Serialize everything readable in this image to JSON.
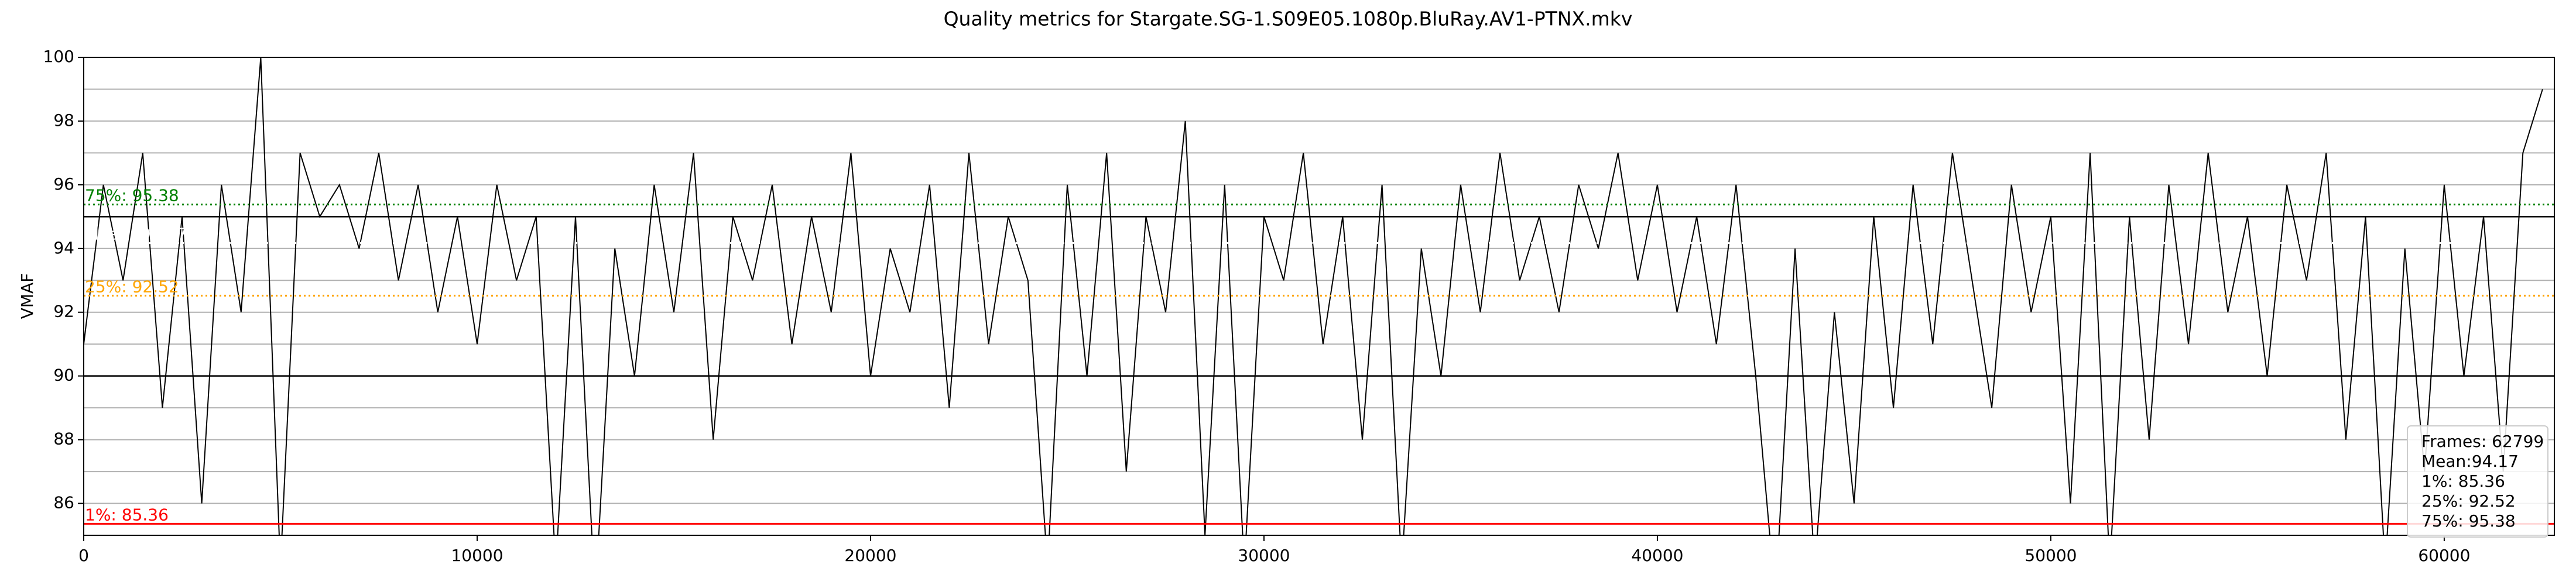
{
  "chart_data": {
    "type": "line",
    "title": "Quality metrics for Stargate.SG-1.S09E05.1080p.BluRay.AV1-PTNX.mkv",
    "ylabel": "VMAF",
    "color": "#000000",
    "x": [
      0,
      500,
      1000,
      1500,
      2000,
      2500,
      3000,
      3500,
      4000,
      4500,
      5000,
      5500,
      6000,
      6500,
      7000,
      7500,
      8000,
      8500,
      9000,
      9500,
      10000,
      10500,
      11000,
      11500,
      12000,
      12500,
      13000,
      13500,
      14000,
      14500,
      15000,
      15500,
      16000,
      16500,
      17000,
      17500,
      18000,
      18500,
      19000,
      19500,
      20000,
      20500,
      21000,
      21500,
      22000,
      22500,
      23000,
      23500,
      24000,
      24500,
      25000,
      25500,
      26000,
      26500,
      27000,
      27500,
      28000,
      28500,
      29000,
      29500,
      30000,
      30500,
      31000,
      31500,
      32000,
      32500,
      33000,
      33500,
      34000,
      34500,
      35000,
      35500,
      36000,
      36500,
      37000,
      37500,
      38000,
      38500,
      39000,
      39500,
      40000,
      40500,
      41000,
      41500,
      42000,
      42500,
      43000,
      43500,
      44000,
      44500,
      45000,
      45500,
      46000,
      46500,
      47000,
      47500,
      48000,
      48500,
      49000,
      49500,
      50000,
      50500,
      51000,
      51500,
      52000,
      52500,
      53000,
      53500,
      54000,
      54500,
      55000,
      55500,
      56000,
      56500,
      57000,
      57500,
      58000,
      58500,
      59000,
      59500,
      60000,
      60500,
      61000,
      61500,
      62000,
      62500
    ],
    "values": [
      91,
      96,
      93,
      97,
      89,
      95,
      86,
      96,
      92,
      100,
      84,
      97,
      95,
      96,
      94,
      97,
      93,
      96,
      92,
      95,
      91,
      96,
      93,
      95,
      84,
      95,
      83,
      94,
      90,
      96,
      92,
      97,
      88,
      95,
      93,
      96,
      91,
      95,
      92,
      97,
      90,
      94,
      92,
      96,
      89,
      97,
      91,
      95,
      93,
      84,
      96,
      90,
      97,
      87,
      95,
      92,
      98,
      85,
      96,
      84,
      95,
      93,
      97,
      91,
      95,
      88,
      96,
      84,
      94,
      90,
      96,
      92,
      97,
      93,
      95,
      92,
      96,
      94,
      97,
      93,
      96,
      92,
      95,
      91,
      96,
      90,
      83,
      94,
      84,
      92,
      86,
      95,
      89,
      96,
      91,
      97,
      93,
      89,
      96,
      92,
      95,
      86,
      97,
      84,
      95,
      88,
      96,
      91,
      97,
      92,
      95,
      90,
      96,
      93,
      97,
      88,
      95,
      84,
      94,
      87,
      96,
      90,
      95,
      87,
      97,
      99
    ],
    "xlim": [
      0,
      62799
    ],
    "xticks": [
      0,
      10000,
      20000,
      30000,
      40000,
      50000,
      60000
    ],
    "ylim": [
      85,
      100
    ],
    "yticks": [
      86,
      88,
      90,
      92,
      94,
      96,
      98,
      100
    ],
    "ygrid": [
      85,
      86,
      87,
      88,
      89,
      90,
      91,
      92,
      93,
      94,
      95,
      96,
      97,
      98,
      99,
      100
    ],
    "hlines": [
      90,
      95
    ],
    "reference_lines": [
      {
        "label": "1%: 85.36",
        "value": 85.36,
        "color": "#ff0000",
        "dashed": false
      },
      {
        "label": "25%: 92.52",
        "value": 92.52,
        "color": "#ffa500",
        "dashed": true
      },
      {
        "label": "Mean: 94.17",
        "value": 94.17,
        "color": "#ffffff",
        "dashed": true
      },
      {
        "label": "75%: 95.38",
        "value": 95.38,
        "color": "#008000",
        "dashed": true
      }
    ],
    "stats": [
      "Frames: 62799",
      "Mean:94.17",
      "1%: 85.36",
      "25%: 92.52",
      "75%: 95.38"
    ]
  }
}
